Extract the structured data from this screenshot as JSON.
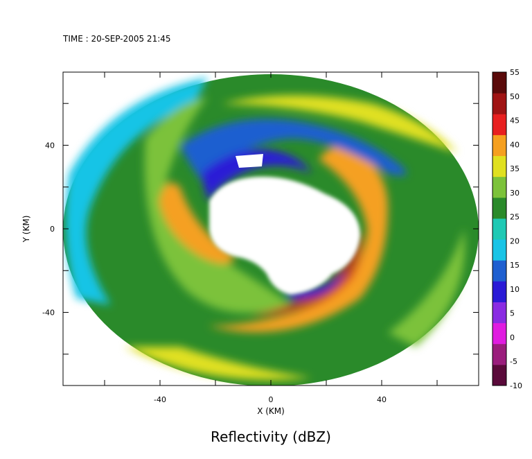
{
  "header": {
    "time_label": "TIME : 20-SEP-2005 21:45"
  },
  "chart_data": {
    "type": "heatmap",
    "title": "Reflectivity (dBZ)",
    "xlabel": "X (KM)",
    "ylabel": "Y (KM)",
    "xlim": [
      -75,
      75
    ],
    "ylim": [
      -75,
      75
    ],
    "x_ticks": [
      -40,
      0,
      40
    ],
    "y_ticks": [
      -40,
      0,
      40
    ],
    "colorbar": {
      "levels": [
        -10,
        -5,
        0,
        5,
        10,
        15,
        20,
        25,
        30,
        35,
        40,
        45,
        50,
        55
      ],
      "colors": [
        "#5a0a3a",
        "#9a1d7c",
        "#e01ce0",
        "#8a2be2",
        "#2a1ad6",
        "#1f5fd0",
        "#19c4e6",
        "#1fc9b4",
        "#2a8a2a",
        "#7cc23a",
        "#e0e020",
        "#f5a020",
        "#e82020",
        "#a01414",
        "#5a0a0a"
      ]
    },
    "grid": false
  }
}
